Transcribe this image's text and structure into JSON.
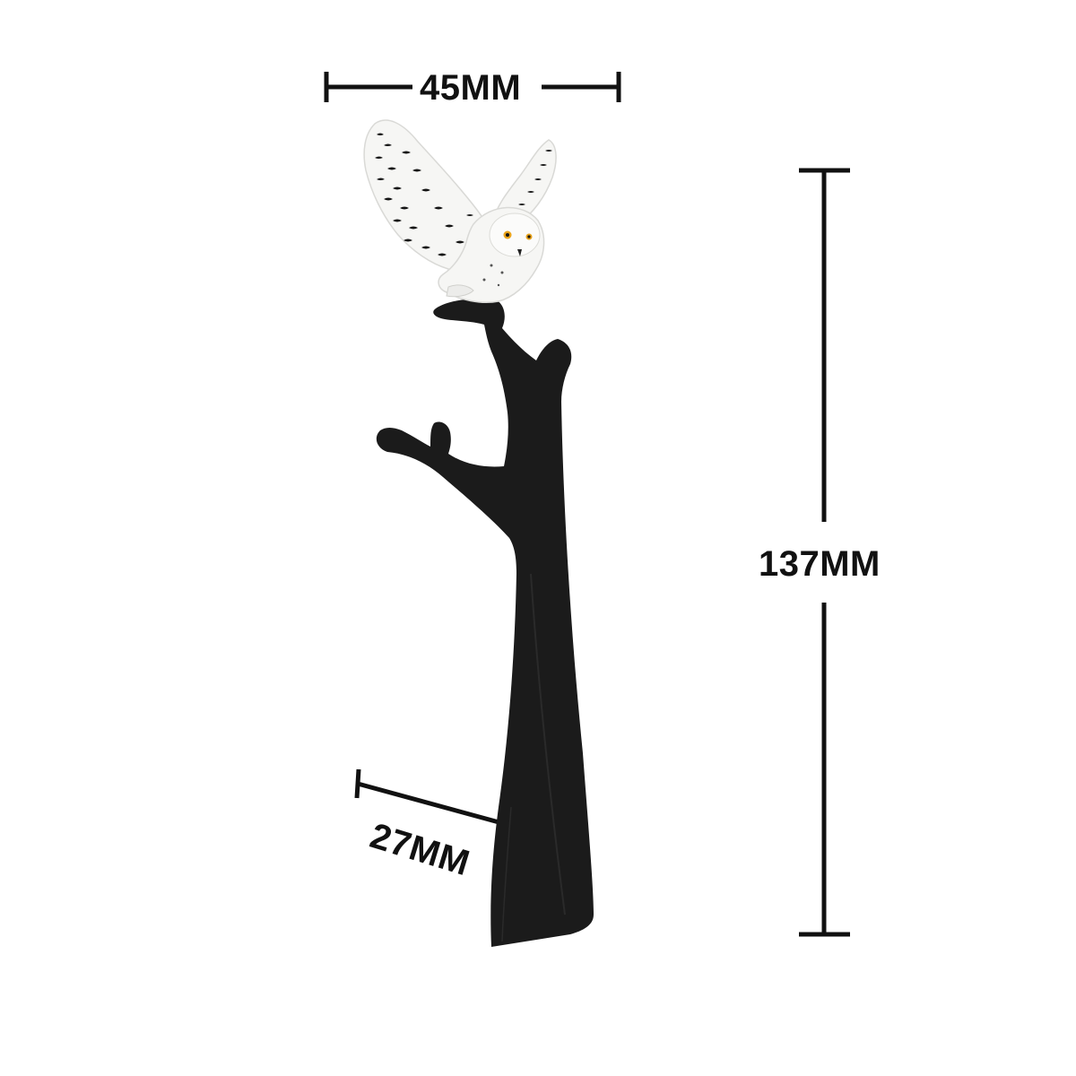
{
  "dimensions": {
    "width_label": "45MM",
    "height_label": "137MM",
    "depth_label": "27MM"
  },
  "colors": {
    "background": "#ffffff",
    "stand": "#1b1b1b",
    "dimension_lines": "#111111",
    "owl_body": "#f6f6f4",
    "owl_markings": "#141414",
    "owl_eye": "#e8a21a"
  },
  "icons": {
    "figure": "snowy-owl-figurine-icon",
    "stand": "tree-stand-silhouette-icon"
  }
}
